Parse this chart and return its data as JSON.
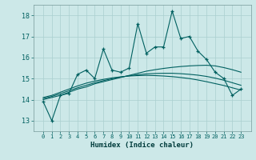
{
  "xlabel": "Humidex (Indice chaleur)",
  "x": [
    0,
    1,
    2,
    3,
    4,
    5,
    6,
    7,
    8,
    9,
    10,
    11,
    12,
    13,
    14,
    15,
    16,
    17,
    18,
    19,
    20,
    21,
    22,
    23
  ],
  "y_main": [
    13.9,
    13.0,
    14.2,
    14.3,
    15.2,
    15.4,
    15.0,
    16.4,
    15.4,
    15.3,
    15.5,
    17.6,
    16.2,
    16.5,
    16.5,
    18.2,
    16.9,
    17.0,
    16.3,
    15.9,
    15.3,
    15.0,
    14.2,
    14.5
  ],
  "y_trend1": [
    14.0,
    14.1,
    14.2,
    14.35,
    14.5,
    14.6,
    14.75,
    14.85,
    14.95,
    15.05,
    15.15,
    15.25,
    15.35,
    15.42,
    15.48,
    15.53,
    15.57,
    15.6,
    15.62,
    15.63,
    15.6,
    15.52,
    15.42,
    15.3
  ],
  "y_trend2": [
    14.1,
    14.2,
    14.35,
    14.5,
    14.65,
    14.78,
    14.88,
    14.96,
    15.03,
    15.08,
    15.12,
    15.14,
    15.15,
    15.14,
    15.12,
    15.09,
    15.05,
    15.0,
    14.93,
    14.85,
    14.76,
    14.67,
    14.56,
    14.45
  ],
  "y_trend3": [
    14.05,
    14.15,
    14.28,
    14.42,
    14.56,
    14.68,
    14.8,
    14.9,
    14.99,
    15.07,
    15.13,
    15.18,
    15.22,
    15.24,
    15.25,
    15.25,
    15.23,
    15.2,
    15.16,
    15.1,
    15.02,
    14.92,
    14.8,
    14.68
  ],
  "ylim": [
    12.5,
    18.5
  ],
  "yticks": [
    13,
    14,
    15,
    16,
    17,
    18
  ],
  "xticks": [
    0,
    1,
    2,
    3,
    4,
    5,
    6,
    7,
    8,
    9,
    10,
    11,
    12,
    13,
    14,
    15,
    16,
    17,
    18,
    19,
    20,
    21,
    22,
    23
  ],
  "line_color": "#006060",
  "bg_color": "#cce8e8",
  "grid_color": "#aacfcf",
  "tick_color": "#006060",
  "label_color": "#003c3c"
}
